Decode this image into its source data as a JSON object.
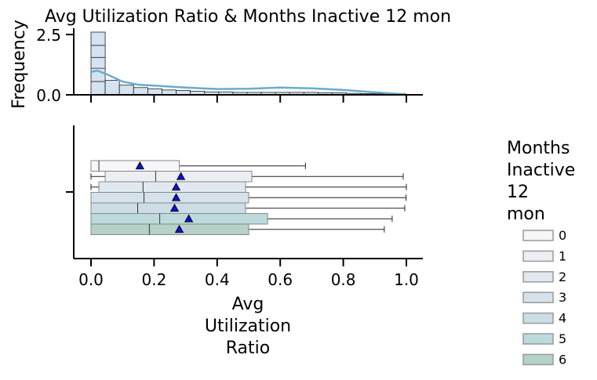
{
  "chart_data": [
    {
      "type": "histogram",
      "panel": "top",
      "title": "Avg Utilization Ratio & Months Inactive 12 mon",
      "ylabel": "Frequency",
      "ylim": [
        0,
        2.6
      ],
      "yticks": [
        "0.0",
        "2.5"
      ],
      "xlim": [
        -0.05,
        1.05
      ],
      "bin_edges": [
        0.0,
        0.045,
        0.09,
        0.135,
        0.18,
        0.225,
        0.27,
        0.315,
        0.36,
        0.405,
        0.45,
        0.495,
        0.54,
        0.585,
        0.63,
        0.675,
        0.72,
        0.765,
        0.81,
        0.855,
        0.9,
        0.945,
        0.99
      ],
      "stacked_counts": [
        2.6,
        0.6,
        0.4,
        0.3,
        0.25,
        0.2,
        0.18,
        0.15,
        0.12,
        0.12,
        0.1,
        0.1,
        0.1,
        0.1,
        0.1,
        0.1,
        0.08,
        0.08,
        0.06,
        0.05,
        0.04,
        0.03
      ],
      "kde": {
        "x": [
          0.0,
          0.02,
          0.05,
          0.1,
          0.15,
          0.2,
          0.3,
          0.4,
          0.5,
          0.6,
          0.7,
          0.8,
          0.9,
          1.0
        ],
        "y": [
          0.95,
          1.0,
          0.85,
          0.55,
          0.42,
          0.38,
          0.3,
          0.24,
          0.25,
          0.3,
          0.27,
          0.2,
          0.1,
          0.02
        ]
      }
    },
    {
      "type": "boxplot",
      "panel": "bottom",
      "orientation": "horizontal",
      "xlabel": "Avg Utilization Ratio",
      "xlim": [
        -0.05,
        1.05
      ],
      "xticks": [
        "0.0",
        "0.2",
        "0.4",
        "0.6",
        "0.8",
        "1.0"
      ],
      "legend": {
        "title": "Months Inactive 12 mon",
        "placement": "right"
      },
      "series": [
        {
          "name": "0",
          "color": "#f6f6f8",
          "q1": 0.0,
          "median": 0.025,
          "q3": 0.28,
          "whisker_low": 0.0,
          "whisker_high": 0.68,
          "mean": 0.155
        },
        {
          "name": "1",
          "color": "#eceef3",
          "q1": 0.045,
          "median": 0.205,
          "q3": 0.51,
          "whisker_low": 0.0,
          "whisker_high": 0.99,
          "mean": 0.285
        },
        {
          "name": "2",
          "color": "#e2e8ef",
          "q1": 0.025,
          "median": 0.165,
          "q3": 0.49,
          "whisker_low": 0.0,
          "whisker_high": 1.0,
          "mean": 0.27
        },
        {
          "name": "3",
          "color": "#d6e2ea",
          "q1": 0.0,
          "median": 0.168,
          "q3": 0.5,
          "whisker_low": 0.0,
          "whisker_high": 0.999,
          "mean": 0.27
        },
        {
          "name": "4",
          "color": "#ccdde6",
          "q1": 0.0,
          "median": 0.148,
          "q3": 0.49,
          "whisker_low": 0.0,
          "whisker_high": 0.995,
          "mean": 0.265
        },
        {
          "name": "5",
          "color": "#bcdada",
          "q1": 0.0,
          "median": 0.218,
          "q3": 0.56,
          "whisker_low": 0.0,
          "whisker_high": 0.955,
          "mean": 0.31
        },
        {
          "name": "6",
          "color": "#b5d1c8",
          "q1": 0.0,
          "median": 0.185,
          "q3": 0.5,
          "whisker_low": 0.0,
          "whisker_high": 0.93,
          "mean": 0.28
        }
      ]
    }
  ]
}
